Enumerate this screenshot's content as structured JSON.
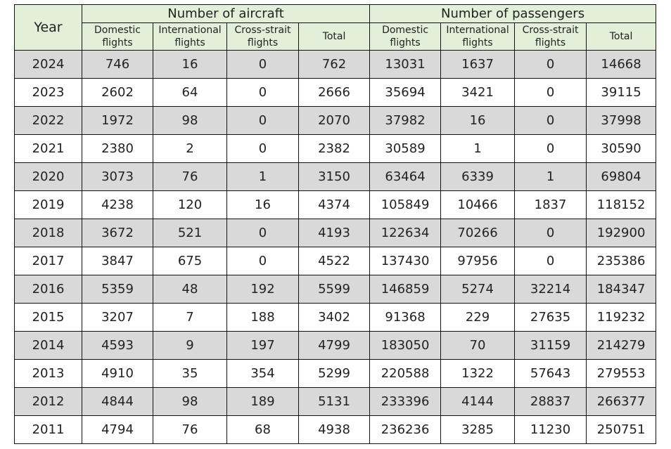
{
  "table": {
    "header": {
      "year": "Year",
      "groups": [
        {
          "label": "Number of aircraft",
          "columns": [
            "Domestic flights",
            "International flights",
            "Cross-strait flights",
            "Total"
          ]
        },
        {
          "label": "Number of passengers",
          "columns": [
            "Domestic flights",
            "International flights",
            "Cross-strait flights",
            "Total"
          ]
        }
      ],
      "subcolumns": [
        {
          "line1": "Domestic",
          "line2": "flights"
        },
        {
          "line1": "International",
          "line2": "flights"
        },
        {
          "line1": "Cross-strait",
          "line2": "flights"
        },
        {
          "line1": "Total",
          "line2": ""
        },
        {
          "line1": "Domestic",
          "line2": "flights"
        },
        {
          "line1": "International",
          "line2": "flights"
        },
        {
          "line1": "Cross-strait",
          "line2": "flights"
        },
        {
          "line1": "Total",
          "line2": ""
        }
      ]
    },
    "rows": [
      [
        "2024",
        "746",
        "16",
        "0",
        "762",
        "13031",
        "1637",
        "0",
        "14668"
      ],
      [
        "2023",
        "2602",
        "64",
        "0",
        "2666",
        "35694",
        "3421",
        "0",
        "39115"
      ],
      [
        "2022",
        "1972",
        "98",
        "0",
        "2070",
        "37982",
        "16",
        "0",
        "37998"
      ],
      [
        "2021",
        "2380",
        "2",
        "0",
        "2382",
        "30589",
        "1",
        "0",
        "30590"
      ],
      [
        "2020",
        "3073",
        "76",
        "1",
        "3150",
        "63464",
        "6339",
        "1",
        "69804"
      ],
      [
        "2019",
        "4238",
        "120",
        "16",
        "4374",
        "105849",
        "10466",
        "1837",
        "118152"
      ],
      [
        "2018",
        "3672",
        "521",
        "0",
        "4193",
        "122634",
        "70266",
        "0",
        "192900"
      ],
      [
        "2017",
        "3847",
        "675",
        "0",
        "4522",
        "137430",
        "97956",
        "0",
        "235386"
      ],
      [
        "2016",
        "5359",
        "48",
        "192",
        "5599",
        "146859",
        "5274",
        "32214",
        "184347"
      ],
      [
        "2015",
        "3207",
        "7",
        "188",
        "3402",
        "91368",
        "229",
        "27635",
        "119232"
      ],
      [
        "2014",
        "4593",
        "9",
        "197",
        "4799",
        "183050",
        "70",
        "31159",
        "214279"
      ],
      [
        "2013",
        "4910",
        "35",
        "354",
        "5299",
        "220588",
        "1322",
        "57643",
        "279553"
      ],
      [
        "2012",
        "4844",
        "98",
        "189",
        "5131",
        "233396",
        "4144",
        "28837",
        "266377"
      ],
      [
        "2011",
        "4794",
        "76",
        "68",
        "4938",
        "236236",
        "3285",
        "11230",
        "250751"
      ]
    ]
  },
  "colors": {
    "header_bg": "#e2efd9",
    "shaded_row_bg": "#d9d9d9",
    "plain_row_bg": "#ffffff",
    "border": "#111111"
  }
}
